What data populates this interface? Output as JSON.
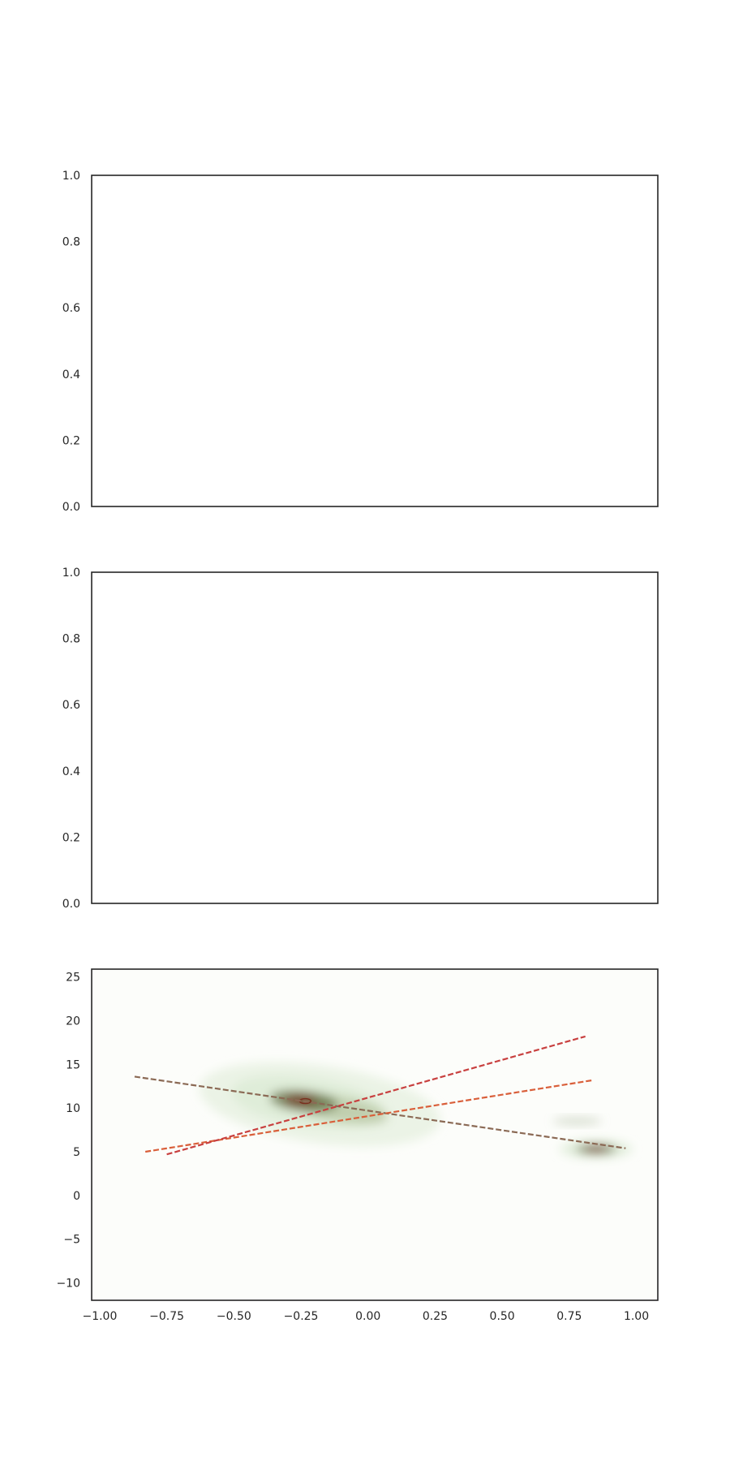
{
  "chart_data": [
    {
      "type": "line",
      "title": "",
      "xlabel": "",
      "ylabel": "",
      "ylim": [
        0,
        1
      ],
      "yticks": [
        "0.0",
        "0.2",
        "0.4",
        "0.6",
        "0.8",
        "1.0"
      ],
      "xticks": [],
      "series": [],
      "grid": false
    },
    {
      "type": "line",
      "title": "",
      "xlabel": "",
      "ylabel": "",
      "ylim": [
        0,
        1
      ],
      "yticks": [
        "0.0",
        "0.2",
        "0.4",
        "0.6",
        "0.8",
        "1.0"
      ],
      "xticks": [],
      "series": [],
      "grid": false
    },
    {
      "type": "heatmap",
      "title": "",
      "xlabel": "",
      "ylabel": "",
      "xlim": [
        -1.03,
        1.08
      ],
      "ylim": [
        -12,
        25.9
      ],
      "xticks": [
        "−1.00",
        "−0.75",
        "−0.50",
        "−0.25",
        "0.00",
        "0.25",
        "0.50",
        "0.75",
        "1.00"
      ],
      "yticks": [
        "−10",
        "−5",
        "0",
        "5",
        "10",
        "15",
        "20",
        "25"
      ],
      "grid": false,
      "density_background": "#fcfdfa",
      "density_colors": [
        "#fcfdfa",
        "#dcebd6",
        "#4f5a2a",
        "#7a2e1e"
      ],
      "density_peaks": [
        {
          "x": -0.24,
          "y": 10.8,
          "weight": 1.0
        },
        {
          "x": 0.85,
          "y": 5.3,
          "weight": 0.9
        },
        {
          "x": 0.78,
          "y": 8.5,
          "weight": 0.15
        }
      ],
      "lines": [
        {
          "color": "#8b6a55",
          "dashed": true,
          "x": [
            -0.87,
            0.96
          ],
          "y": [
            13.6,
            5.4
          ]
        },
        {
          "color": "#d95f3a",
          "dashed": true,
          "x": [
            -0.83,
            0.84
          ],
          "y": [
            5.0,
            13.2
          ]
        },
        {
          "color": "#c8403f",
          "dashed": true,
          "x": [
            -0.75,
            0.81
          ],
          "y": [
            4.7,
            18.2
          ]
        }
      ]
    }
  ]
}
